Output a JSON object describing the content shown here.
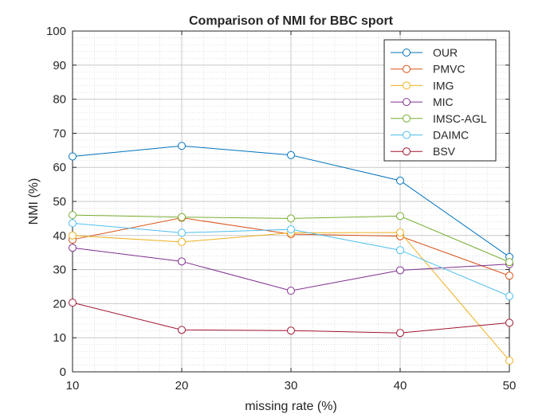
{
  "chart_data": {
    "type": "line",
    "title": "Comparison of NMI for BBC sport",
    "xlabel": "missing rate (%)",
    "ylabel": "NMI (%)",
    "x": [
      10,
      20,
      30,
      40,
      50
    ],
    "xlim": [
      10,
      50
    ],
    "ylim": [
      0,
      100
    ],
    "xticks": [
      10,
      20,
      30,
      40,
      50
    ],
    "yticks": [
      0,
      10,
      20,
      30,
      40,
      50,
      60,
      70,
      80,
      90,
      100
    ],
    "grid": true,
    "minor_grid": true,
    "legend_position": "top-right",
    "series": [
      {
        "name": "OUR",
        "color": "#0072BD",
        "values": [
          63.2,
          66.3,
          63.6,
          56.1,
          33.7
        ]
      },
      {
        "name": "PMVC",
        "color": "#D95319",
        "values": [
          38.8,
          45.2,
          40.4,
          39.8,
          28.2
        ]
      },
      {
        "name": "IMG",
        "color": "#EDB120",
        "values": [
          40.0,
          38.1,
          40.8,
          40.9,
          3.3
        ]
      },
      {
        "name": "MIC",
        "color": "#7E2F8E",
        "values": [
          36.4,
          32.4,
          23.8,
          29.8,
          31.6
        ]
      },
      {
        "name": "IMSC-AGL",
        "color": "#77AC30",
        "values": [
          46.0,
          45.4,
          45.0,
          45.7,
          32.2
        ]
      },
      {
        "name": "DAIMC",
        "color": "#4DBEEE",
        "values": [
          43.6,
          40.8,
          41.8,
          35.7,
          22.2
        ]
      },
      {
        "name": "BSV",
        "color": "#A2142F",
        "values": [
          20.3,
          12.3,
          12.1,
          11.4,
          14.4
        ]
      }
    ]
  }
}
